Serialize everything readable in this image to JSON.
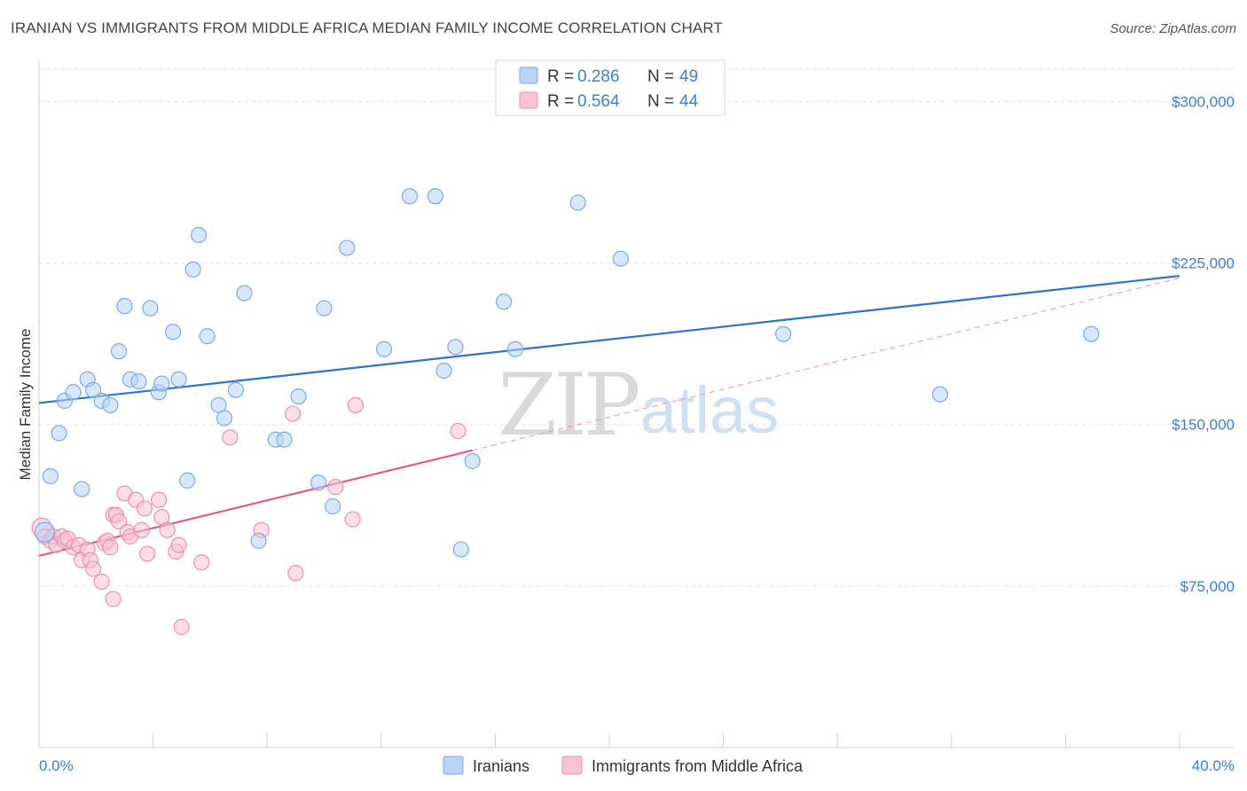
{
  "title": "IRANIAN VS IMMIGRANTS FROM MIDDLE AFRICA MEDIAN FAMILY INCOME CORRELATION CHART",
  "source": "Source: ZipAtlas.com",
  "watermark": {
    "zip": "ZIP",
    "atlas": "atlas"
  },
  "colors": {
    "iranians_fill": "#b8d4f5",
    "iranians_stroke": "#7aaae6",
    "iranians_line": "#2f72d0",
    "africa_fill": "#f8c3d3",
    "africa_stroke": "#ec8fae",
    "africa_line": "#e05a8a",
    "axis_label": "#3a7fd5",
    "grid": "#e3e3e3"
  },
  "legend": {
    "rows": [
      {
        "r_label": "R =",
        "r_value": "0.286",
        "n_label": "N =",
        "n_value": "49"
      },
      {
        "r_label": "R =",
        "r_value": "0.564",
        "n_label": "N =",
        "n_value": "44"
      }
    ]
  },
  "chart_data": {
    "type": "scatter",
    "title": "IRANIAN VS IMMIGRANTS FROM MIDDLE AFRICA MEDIAN FAMILY INCOME CORRELATION CHART",
    "xlabel": "",
    "ylabel": "Median Family Income",
    "xlim": [
      0,
      40
    ],
    "ylim": [
      0,
      315000
    ],
    "x_tick_labels": [
      "0.0%",
      "40.0%"
    ],
    "y_ticks": [
      75000,
      150000,
      225000,
      300000
    ],
    "y_tick_labels": [
      "$75,000",
      "$150,000",
      "$225,000",
      "$300,000"
    ],
    "grid": true,
    "legend_position": "top-center",
    "series": [
      {
        "name": "Iranians",
        "r": 0.286,
        "n": 49,
        "trend": {
          "x": [
            0,
            40
          ],
          "y": [
            160000,
            219000
          ]
        },
        "points": [
          [
            0.2,
            100000
          ],
          [
            0.4,
            126000
          ],
          [
            0.7,
            146000
          ],
          [
            0.9,
            161000
          ],
          [
            1.2,
            165000
          ],
          [
            1.5,
            120000
          ],
          [
            1.7,
            171000
          ],
          [
            1.9,
            166000
          ],
          [
            2.2,
            161000
          ],
          [
            2.5,
            159000
          ],
          [
            2.8,
            184000
          ],
          [
            3.0,
            205000
          ],
          [
            3.2,
            171000
          ],
          [
            3.5,
            170000
          ],
          [
            3.9,
            204000
          ],
          [
            4.2,
            165000
          ],
          [
            4.3,
            169000
          ],
          [
            4.7,
            193000
          ],
          [
            4.9,
            171000
          ],
          [
            5.2,
            124000
          ],
          [
            5.4,
            222000
          ],
          [
            5.6,
            238000
          ],
          [
            5.9,
            191000
          ],
          [
            6.3,
            159000
          ],
          [
            6.5,
            153000
          ],
          [
            6.9,
            166000
          ],
          [
            7.2,
            211000
          ],
          [
            7.7,
            96000
          ],
          [
            8.3,
            143000
          ],
          [
            8.6,
            143000
          ],
          [
            9.1,
            163000
          ],
          [
            9.8,
            123000
          ],
          [
            10.0,
            204000
          ],
          [
            10.3,
            112000
          ],
          [
            10.8,
            232000
          ],
          [
            12.1,
            185000
          ],
          [
            13.0,
            256000
          ],
          [
            13.9,
            256000
          ],
          [
            14.2,
            175000
          ],
          [
            14.6,
            186000
          ],
          [
            14.8,
            92000
          ],
          [
            15.2,
            133000
          ],
          [
            16.3,
            207000
          ],
          [
            16.7,
            185000
          ],
          [
            18.9,
            253000
          ],
          [
            20.4,
            227000
          ],
          [
            26.1,
            192000
          ],
          [
            31.6,
            164000
          ],
          [
            36.9,
            192000
          ]
        ]
      },
      {
        "name": "Immigrants from Middle Africa",
        "r": 0.564,
        "n": 44,
        "trend": {
          "x": [
            0,
            15.2
          ],
          "y": [
            89000,
            138000
          ]
        },
        "trend_extension": {
          "x": [
            15.2,
            40
          ],
          "y": [
            138000,
            218000
          ]
        },
        "points": [
          [
            0.1,
            102000
          ],
          [
            0.2,
            98000
          ],
          [
            0.4,
            96000
          ],
          [
            0.5,
            98000
          ],
          [
            0.6,
            94000
          ],
          [
            0.8,
            98000
          ],
          [
            0.9,
            96000
          ],
          [
            1.0,
            97000
          ],
          [
            1.2,
            93000
          ],
          [
            1.4,
            94000
          ],
          [
            1.5,
            87000
          ],
          [
            1.7,
            92000
          ],
          [
            1.8,
            87000
          ],
          [
            1.9,
            83000
          ],
          [
            2.2,
            77000
          ],
          [
            2.3,
            95000
          ],
          [
            2.4,
            96000
          ],
          [
            2.5,
            93000
          ],
          [
            2.6,
            108000
          ],
          [
            2.7,
            108000
          ],
          [
            2.6,
            69000
          ],
          [
            2.8,
            105000
          ],
          [
            3.0,
            118000
          ],
          [
            3.1,
            100000
          ],
          [
            3.2,
            98000
          ],
          [
            3.4,
            115000
          ],
          [
            3.6,
            101000
          ],
          [
            3.7,
            111000
          ],
          [
            3.8,
            90000
          ],
          [
            4.2,
            115000
          ],
          [
            4.3,
            107000
          ],
          [
            4.5,
            101000
          ],
          [
            4.8,
            91000
          ],
          [
            4.9,
            94000
          ],
          [
            5.0,
            56000
          ],
          [
            5.7,
            86000
          ],
          [
            6.7,
            144000
          ],
          [
            7.8,
            101000
          ],
          [
            8.9,
            155000
          ],
          [
            9.0,
            81000
          ],
          [
            10.4,
            121000
          ],
          [
            11.0,
            106000
          ],
          [
            11.1,
            159000
          ],
          [
            14.7,
            147000
          ]
        ]
      }
    ]
  },
  "bottom_legend": [
    {
      "label": "Iranians"
    },
    {
      "label": "Immigrants from Middle Africa"
    }
  ]
}
